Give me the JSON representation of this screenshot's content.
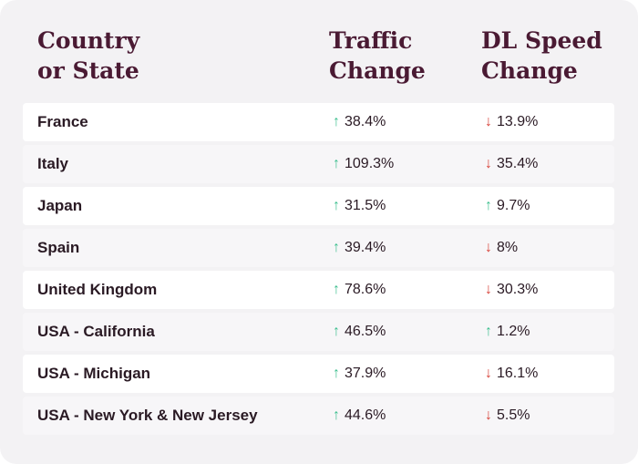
{
  "colors": {
    "heading": "#4a1a33",
    "up": "#3dbf8f",
    "down": "#d8433a",
    "background": "#f3f2f4"
  },
  "headers": {
    "country_line1": "Country",
    "country_line2": "or State",
    "traffic_line1": "Traffic",
    "traffic_line2": "Change",
    "speed_line1": "DL Speed",
    "speed_line2": "Change"
  },
  "chart_data": {
    "type": "table",
    "columns": [
      "Country or State",
      "Traffic Change",
      "DL Speed Change"
    ],
    "rows": [
      {
        "country": "France",
        "traffic": "38.4%",
        "traffic_dir": "up",
        "speed": "13.9%",
        "speed_dir": "down"
      },
      {
        "country": "Italy",
        "traffic": "109.3%",
        "traffic_dir": "up",
        "speed": "35.4%",
        "speed_dir": "down"
      },
      {
        "country": "Japan",
        "traffic": "31.5%",
        "traffic_dir": "up",
        "speed": "9.7%",
        "speed_dir": "up"
      },
      {
        "country": "Spain",
        "traffic": "39.4%",
        "traffic_dir": "up",
        "speed": "8%",
        "speed_dir": "down"
      },
      {
        "country": "United Kingdom",
        "traffic": "78.6%",
        "traffic_dir": "up",
        "speed": "30.3%",
        "speed_dir": "down"
      },
      {
        "country": "USA - California",
        "traffic": "46.5%",
        "traffic_dir": "up",
        "speed": "1.2%",
        "speed_dir": "up"
      },
      {
        "country": "USA - Michigan",
        "traffic": "37.9%",
        "traffic_dir": "up",
        "speed": "16.1%",
        "speed_dir": "down"
      },
      {
        "country": "USA - New York & New Jersey",
        "traffic": "44.6%",
        "traffic_dir": "up",
        "speed": "5.5%",
        "speed_dir": "down"
      }
    ]
  }
}
